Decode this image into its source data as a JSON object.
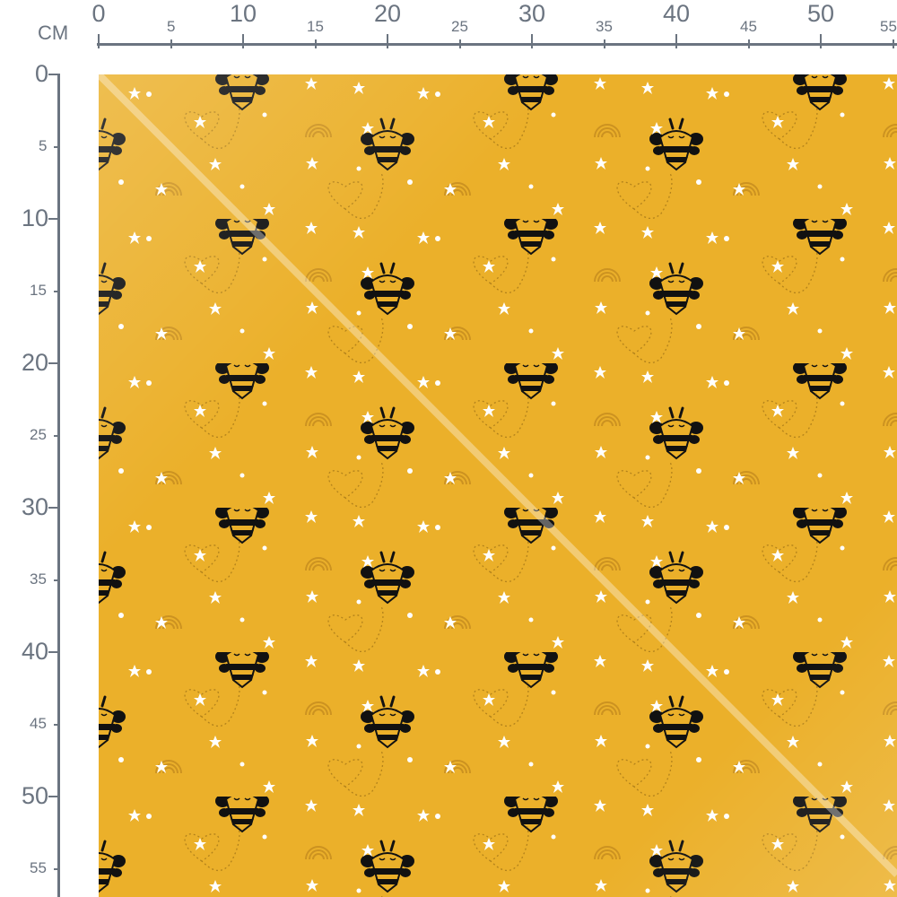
{
  "ruler": {
    "unit": "CM",
    "color": "#6b7480",
    "horizontal_labels": [
      "0",
      "5",
      "10",
      "15",
      "20",
      "25",
      "30",
      "35",
      "40",
      "45",
      "50",
      "55"
    ],
    "vertical_labels": [
      "0",
      "5",
      "10",
      "15",
      "20",
      "25",
      "30",
      "35",
      "40",
      "45",
      "50",
      "55"
    ]
  },
  "fabric": {
    "background": "#ebb02a",
    "motifs": [
      "bee-icon",
      "star-icon",
      "rainbow-icon",
      "heart-trail-icon"
    ],
    "bee_color": "#111111",
    "star_color": "#ffffff",
    "rainbow_color": "#c48b1d"
  }
}
